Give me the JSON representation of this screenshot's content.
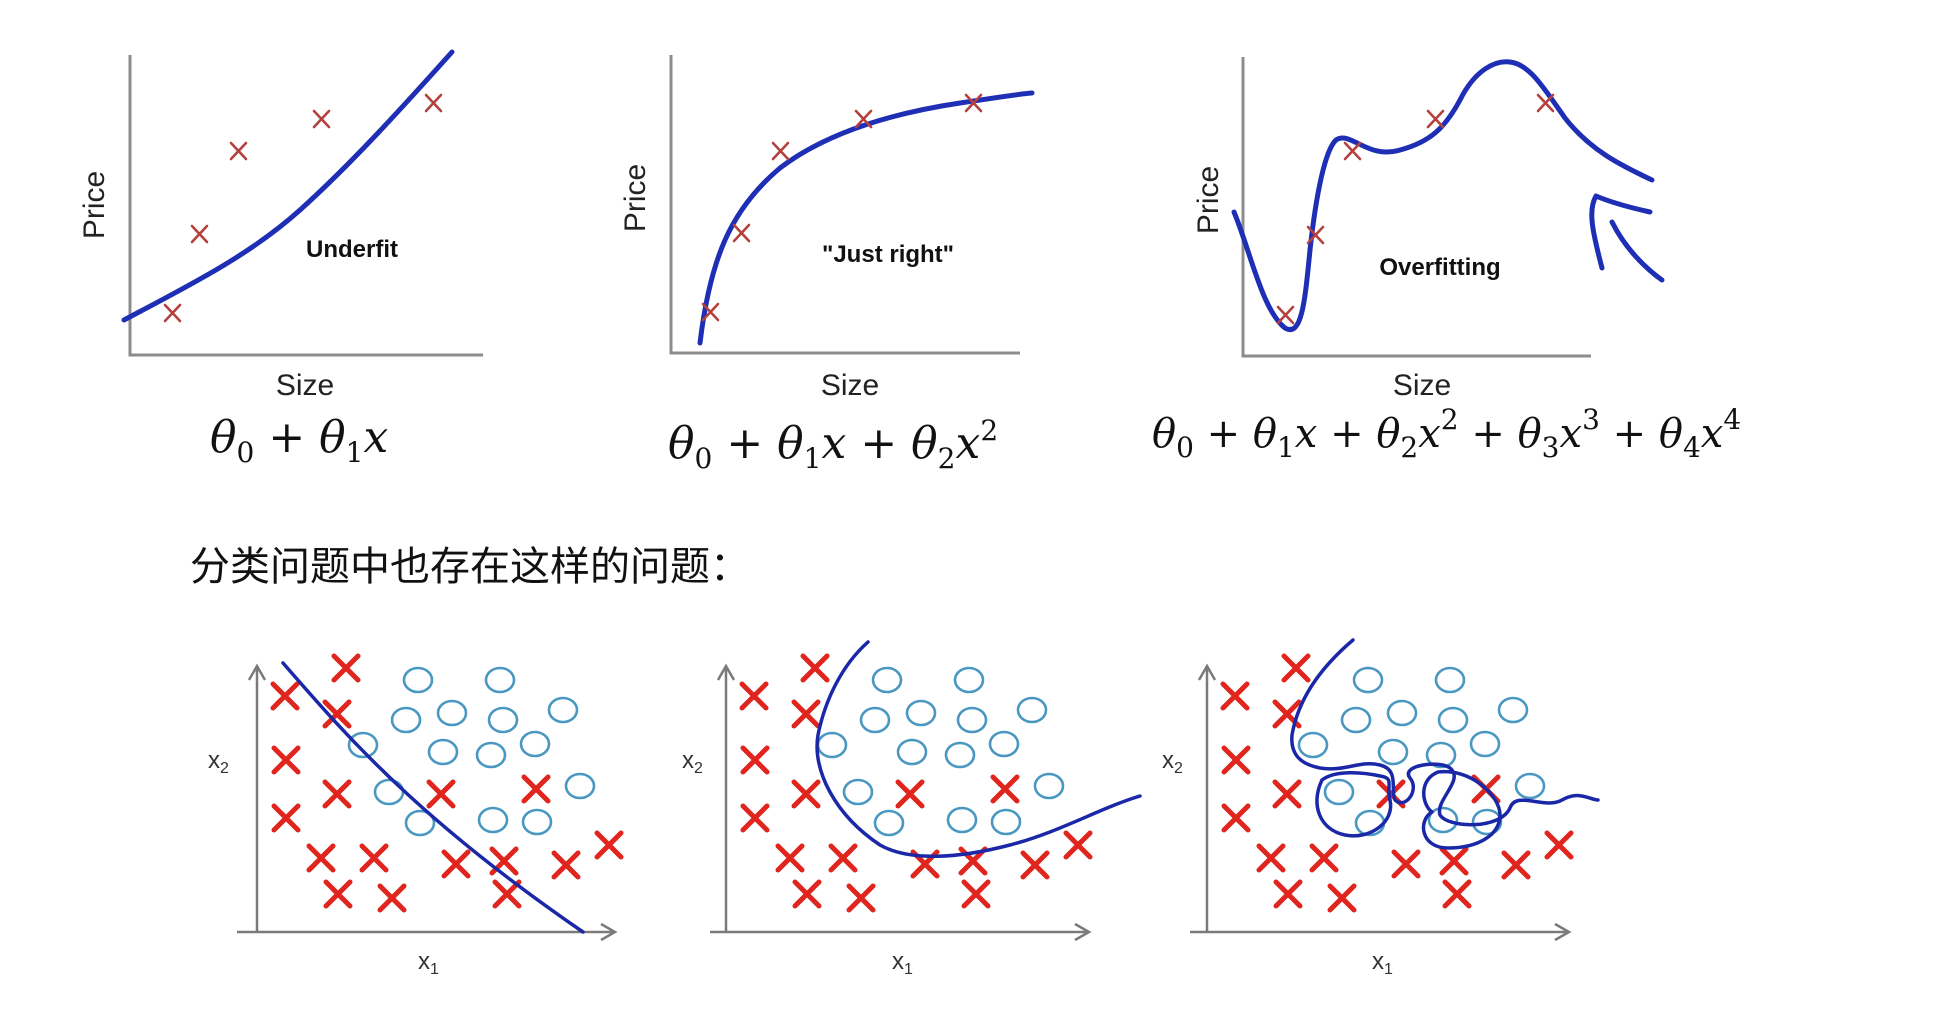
{
  "regression": {
    "panels": [
      {
        "ylabel": "Price",
        "xlabel": "Size",
        "tag": "Underfit",
        "formula": [
          "θ",
          "0",
          " + ",
          "θ",
          "1",
          "x"
        ]
      },
      {
        "ylabel": "Price",
        "xlabel": "Size",
        "tag": "\"Just right\"",
        "formula": [
          "θ",
          "0",
          " + ",
          "θ",
          "1",
          "x",
          " + ",
          "θ",
          "2",
          "x",
          "2"
        ]
      },
      {
        "ylabel": "Price",
        "xlabel": "Size",
        "tag": "Overfitting",
        "formula": [
          "θ",
          "0",
          " + ",
          "θ",
          "1",
          "x",
          " + ",
          "θ",
          "2",
          "x",
          "2",
          " + ",
          "θ",
          "3",
          "x",
          "3",
          " + ",
          "θ",
          "4",
          "x",
          "4"
        ]
      }
    ],
    "marker_color": "#b5413f",
    "curve_color": "#1f2fb5"
  },
  "caption": "分类问题中也存在这样的问题：",
  "classification": {
    "panels": [
      {
        "x1_label": "x",
        "x1_sub": "1",
        "x2_label": "x",
        "x2_sub": "2"
      },
      {
        "x1_label": "x",
        "x1_sub": "1",
        "x2_label": "x",
        "x2_sub": "2"
      },
      {
        "x1_label": "x",
        "x1_sub": "1",
        "x2_label": "x",
        "x2_sub": "2"
      }
    ],
    "cross_color": "#e0251e",
    "circle_color": "#4a98c2",
    "boundary_color": "#1a28a8"
  }
}
